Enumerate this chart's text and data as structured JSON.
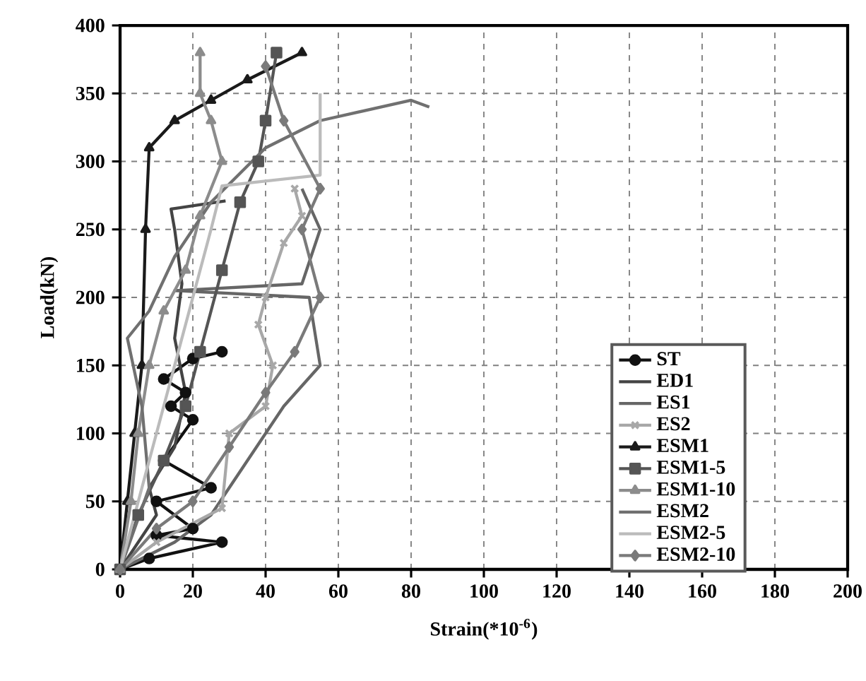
{
  "chart_data": {
    "type": "line",
    "xlabel": "Strain(*10$^{-6}$)",
    "ylabel": "Load(kN)",
    "xlim": [
      0,
      200
    ],
    "ylim": [
      0,
      400
    ],
    "xticks": [
      0,
      20,
      40,
      60,
      80,
      100,
      120,
      140,
      160,
      180,
      200
    ],
    "yticks": [
      0,
      50,
      100,
      150,
      200,
      250,
      300,
      350,
      400
    ],
    "grid": true,
    "legend": "right",
    "line_style": "solid",
    "series": [
      {
        "name": "ST",
        "color": "#111111",
        "marker": "circle",
        "x": [
          0,
          8,
          28,
          10,
          20,
          10,
          25,
          12,
          20,
          14,
          18,
          12,
          20,
          28
        ],
        "values": [
          0,
          8,
          20,
          25,
          30,
          50,
          60,
          80,
          110,
          120,
          130,
          140,
          155,
          160
        ]
      },
      {
        "name": "ED1",
        "color": "#444444",
        "marker": "none",
        "x": [
          0,
          5,
          10,
          8,
          15,
          18,
          15,
          17,
          15,
          14,
          29
        ],
        "values": [
          0,
          20,
          40,
          60,
          90,
          130,
          170,
          210,
          250,
          265,
          271
        ]
      },
      {
        "name": "ES1",
        "color": "#666666",
        "marker": "none",
        "x": [
          0,
          15,
          25,
          35,
          45,
          55,
          52,
          15,
          50,
          55,
          50
        ],
        "values": [
          0,
          20,
          40,
          80,
          120,
          150,
          200,
          205,
          210,
          250,
          280
        ]
      },
      {
        "name": "ES2",
        "color": "#a8a8a8",
        "marker": "cross",
        "x": [
          0,
          10,
          28,
          30,
          40,
          42,
          38,
          40,
          45,
          50,
          48
        ],
        "values": [
          0,
          20,
          45,
          100,
          120,
          150,
          180,
          200,
          240,
          260,
          280
        ]
      },
      {
        "name": "ESM1",
        "color": "#1a1a1a",
        "marker": "triangle",
        "x": [
          0,
          2,
          4,
          6,
          7,
          8,
          15,
          25,
          35,
          50
        ],
        "values": [
          0,
          50,
          100,
          150,
          250,
          310,
          330,
          345,
          360,
          380
        ]
      },
      {
        "name": "ESM1-5",
        "color": "#555555",
        "marker": "square",
        "x": [
          0,
          5,
          12,
          18,
          22,
          28,
          33,
          38,
          40,
          43
        ],
        "values": [
          0,
          40,
          80,
          120,
          160,
          220,
          270,
          300,
          330,
          380
        ]
      },
      {
        "name": "ESM1-10",
        "color": "#8c8c8c",
        "marker": "triangle",
        "x": [
          0,
          3,
          5,
          8,
          12,
          18,
          22,
          28,
          25,
          22,
          22
        ],
        "values": [
          0,
          50,
          100,
          150,
          190,
          220,
          260,
          300,
          330,
          350,
          380
        ]
      },
      {
        "name": "ESM2",
        "color": "#707070",
        "marker": "none",
        "x": [
          0,
          8,
          6,
          2,
          8,
          15,
          25,
          40,
          55,
          80,
          85
        ],
        "values": [
          0,
          60,
          120,
          170,
          190,
          230,
          270,
          310,
          330,
          345,
          340
        ]
      },
      {
        "name": "ESM2-5",
        "color": "#bbbbbb",
        "marker": "none",
        "x": [
          0,
          5,
          10,
          15,
          20,
          25,
          28,
          55,
          55
        ],
        "values": [
          0,
          50,
          100,
          150,
          200,
          250,
          282,
          290,
          350
        ]
      },
      {
        "name": "ESM2-10",
        "color": "#7a7a7a",
        "marker": "diamond",
        "x": [
          0,
          10,
          20,
          30,
          40,
          48,
          55,
          50,
          55,
          45,
          40
        ],
        "values": [
          0,
          30,
          50,
          90,
          130,
          160,
          200,
          250,
          280,
          330,
          370
        ]
      }
    ]
  }
}
